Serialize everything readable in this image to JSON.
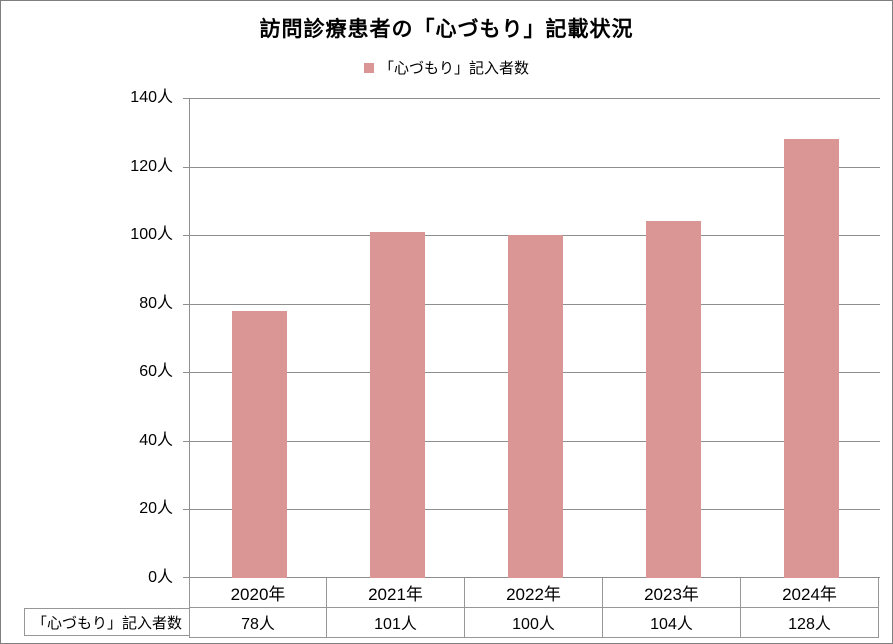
{
  "chart_data": {
    "type": "bar",
    "title": "訪問診療患者の「心づもり」記載状況",
    "legend_labels": [
      "「心づもり」記入者数"
    ],
    "legend_position": "top-center",
    "categories": [
      "2020年",
      "2021年",
      "2022年",
      "2023年",
      "2024年"
    ],
    "series": [
      {
        "name": "「心づもり」記入者数",
        "values": [
          78,
          101,
          100,
          104,
          128
        ]
      }
    ],
    "unit": "人",
    "ylim": [
      0,
      140
    ],
    "ytick_step": 20,
    "ytick_labels": [
      "0人",
      "20人",
      "40人",
      "60人",
      "80人",
      "100人",
      "120人",
      "140人"
    ],
    "grid": true,
    "data_table": {
      "row_header": "「心づもり」記入者数",
      "cells": [
        "78人",
        "101人",
        "100人",
        "104人",
        "128人"
      ]
    },
    "colors": {
      "bar": "#D99694",
      "gridline": "#8E8E8E",
      "axis": "#8E8E8E",
      "table_border": "#979797",
      "chart_border": "#7F7F7F",
      "text": "#000000"
    }
  }
}
